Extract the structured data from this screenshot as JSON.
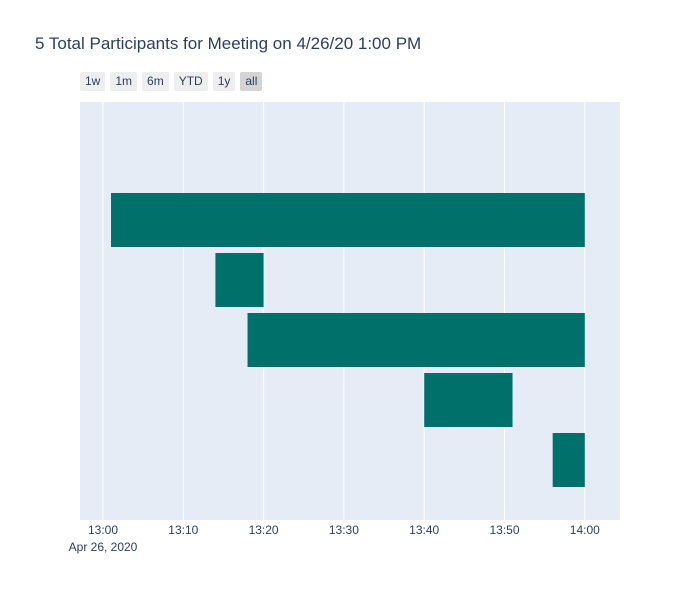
{
  "chart_data": {
    "type": "bar",
    "orientation": "horizontal",
    "title": "5 Total Participants for Meeting on 4/26/20 1:00 PM",
    "range_buttons": [
      "1w",
      "1m",
      "6m",
      "YTD",
      "1y",
      "all"
    ],
    "active_range": "all",
    "x_axis": {
      "type": "time",
      "range": [
        "13:00",
        "14:04"
      ],
      "tick_labels": [
        "13:00",
        "13:10",
        "13:20",
        "13:30",
        "13:40",
        "13:50",
        "14:00"
      ],
      "date_label": "Apr 26, 2020"
    },
    "participants": [
      {
        "start": "13:01",
        "end": "14:00"
      },
      {
        "start": "13:14",
        "end": "13:20"
      },
      {
        "start": "13:18",
        "end": "14:00"
      },
      {
        "start": "13:40",
        "end": "13:51"
      },
      {
        "start": "13:56",
        "end": "14:00"
      }
    ],
    "bar_color": "#00706a",
    "plot_bgcolor": "#e5ecf6",
    "grid_color": "#ffffff",
    "grid": true
  }
}
